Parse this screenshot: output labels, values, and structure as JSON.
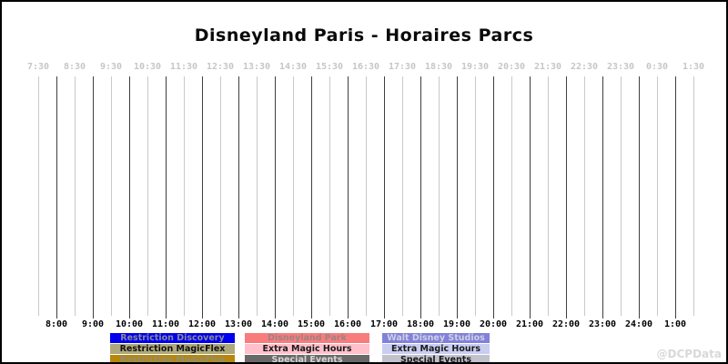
{
  "title": "Disneyland Paris - Horaires Parcs",
  "watermark": "@DCPData",
  "axis": {
    "top_ticks": [
      "7:30",
      "8:30",
      "9:30",
      "10:30",
      "11:30",
      "12:30",
      "13:30",
      "14:30",
      "15:30",
      "16:30",
      "17:30",
      "18:30",
      "19:30",
      "20:30",
      "21:30",
      "22:30",
      "23:30",
      "0:30",
      "1:30"
    ],
    "bottom_ticks": [
      "8:00",
      "9:00",
      "10:00",
      "11:00",
      "12:00",
      "13:00",
      "14:00",
      "15:00",
      "16:00",
      "17:00",
      "18:00",
      "19:00",
      "20:00",
      "21:00",
      "22:00",
      "23:00",
      "24:00",
      "1:00"
    ]
  },
  "colors": {
    "grid_halfhour": "#c9c9c9",
    "grid_hour": "#3f3f3f",
    "top_tick_text": "#c6c6c6",
    "bottom_tick_text": "#000000",
    "frame_border": "#000000"
  },
  "legend": {
    "columns": [
      {
        "name": "restrictions",
        "items": [
          {
            "label": "Restriction Discovery",
            "bg": "#0000ee",
            "fg": "#8a8a96"
          },
          {
            "label": "Restriction MagicFlex",
            "bg": "#aea97c",
            "fg": "#111111"
          },
          {
            "label": "Restriction MagicPlus",
            "bg": "#b8860b",
            "fg": "#8f8f72"
          }
        ]
      },
      {
        "name": "disneyland-park",
        "items": [
          {
            "label": "Disneyland Park",
            "bg": "#f97c7c",
            "fg": "#9e8282"
          },
          {
            "label": "Extra Magic Hours",
            "bg": "#ffc0cb",
            "fg": "#1a1a1a"
          },
          {
            "label": "Special Events",
            "bg": "#696969",
            "fg": "#d4d4d4"
          }
        ]
      },
      {
        "name": "walt-disney-studios",
        "items": [
          {
            "label": "Walt Disney Studios",
            "bg": "#8181dc",
            "fg": "#d0d0e0"
          },
          {
            "label": "Extra Magic Hours",
            "bg": "#c9cdf0",
            "fg": "#1a1a1a"
          },
          {
            "label": "Special Events",
            "bg": "#c2c2cc",
            "fg": "#1a1a1a"
          }
        ]
      }
    ]
  },
  "chart_data": {
    "type": "timeline",
    "title": "Disneyland Paris - Horaires Parcs",
    "xlabel": "",
    "ylabel": "",
    "x_axis": {
      "start": "7:30",
      "end": "1:30",
      "interval_minutes": 30,
      "top_tick_labels": [
        "7:30",
        "8:30",
        "9:30",
        "10:30",
        "11:30",
        "12:30",
        "13:30",
        "14:30",
        "15:30",
        "16:30",
        "17:30",
        "18:30",
        "19:30",
        "20:30",
        "21:30",
        "22:30",
        "23:30",
        "0:30",
        "1:30"
      ],
      "bottom_tick_labels": [
        "8:00",
        "9:00",
        "10:00",
        "11:00",
        "12:00",
        "13:00",
        "14:00",
        "15:00",
        "16:00",
        "17:00",
        "18:00",
        "19:00",
        "20:00",
        "21:00",
        "22:00",
        "23:00",
        "24:00",
        "1:00"
      ],
      "grid": "vertical lines every 30 min; hour lines dark, half-hour lines light"
    },
    "series": [
      {
        "name": "Restriction Discovery",
        "color": "#0000ee",
        "values": []
      },
      {
        "name": "Restriction MagicFlex",
        "color": "#aea97c",
        "values": []
      },
      {
        "name": "Restriction MagicPlus",
        "color": "#b8860b",
        "values": []
      },
      {
        "name": "Disneyland Park",
        "color": "#f97c7c",
        "values": []
      },
      {
        "name": "Extra Magic Hours (Disneyland Park)",
        "color": "#ffc0cb",
        "values": []
      },
      {
        "name": "Special Events (Disneyland Park)",
        "color": "#696969",
        "values": []
      },
      {
        "name": "Walt Disney Studios",
        "color": "#8181dc",
        "values": []
      },
      {
        "name": "Extra Magic Hours (Walt Disney Studios)",
        "color": "#c9cdf0",
        "values": []
      },
      {
        "name": "Special Events (Walt Disney Studios)",
        "color": "#c2c2cc",
        "values": []
      }
    ],
    "note": "Plot area contains no schedule bars; only the empty time grid is drawn.",
    "legend_position": "bottom",
    "watermark": "@DCPData"
  }
}
